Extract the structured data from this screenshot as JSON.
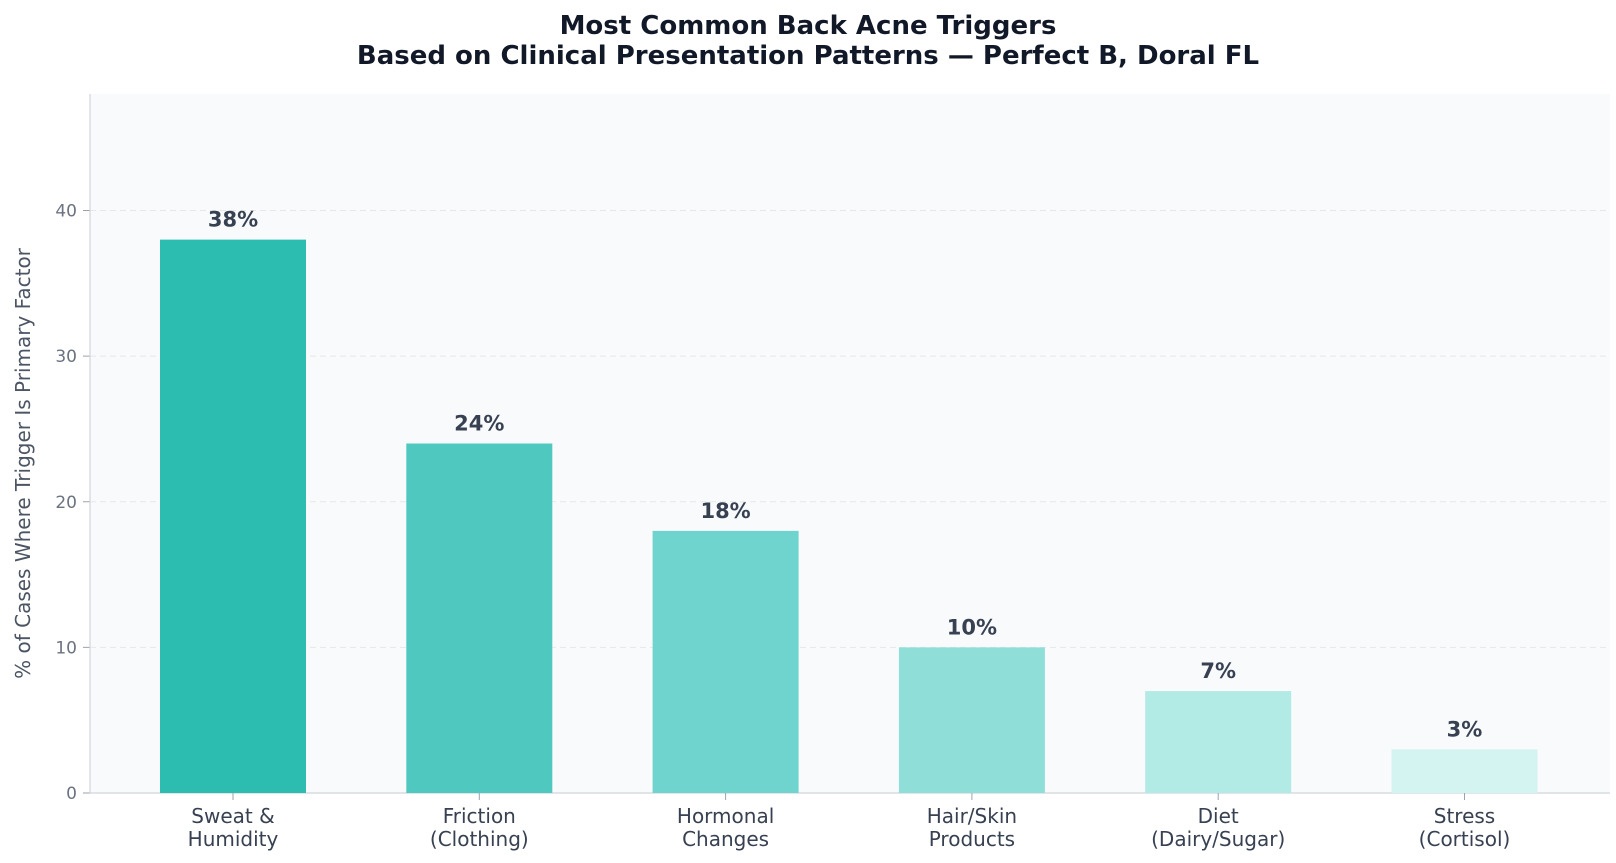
{
  "chart_data": {
    "type": "bar",
    "title": "Most Common Back Acne Triggers",
    "subtitle": "Based on Clinical Presentation Patterns — Perfect B, Doral FL",
    "xlabel": "",
    "ylabel": "% of Cases Where Trigger Is Primary Factor",
    "ylim": [
      0,
      48
    ],
    "yticks": [
      0,
      10,
      20,
      30,
      40
    ],
    "grid": true,
    "categories": [
      [
        "Sweat &",
        "Humidity"
      ],
      [
        "Friction",
        "(Clothing)"
      ],
      [
        "Hormonal",
        "Changes"
      ],
      [
        "Hair/Skin",
        "Products"
      ],
      [
        "Diet",
        "(Dairy/Sugar)"
      ],
      [
        "Stress",
        "(Cortisol)"
      ]
    ],
    "values": [
      38,
      24,
      18,
      10,
      7,
      3
    ],
    "value_labels": [
      "38%",
      "24%",
      "18%",
      "10%",
      "7%",
      "3%"
    ],
    "colors": [
      "#2dbcb0",
      "#4fc9bf",
      "#6fd4cd",
      "#8fdfd8",
      "#b2eae6",
      "#d3f4f1"
    ]
  }
}
